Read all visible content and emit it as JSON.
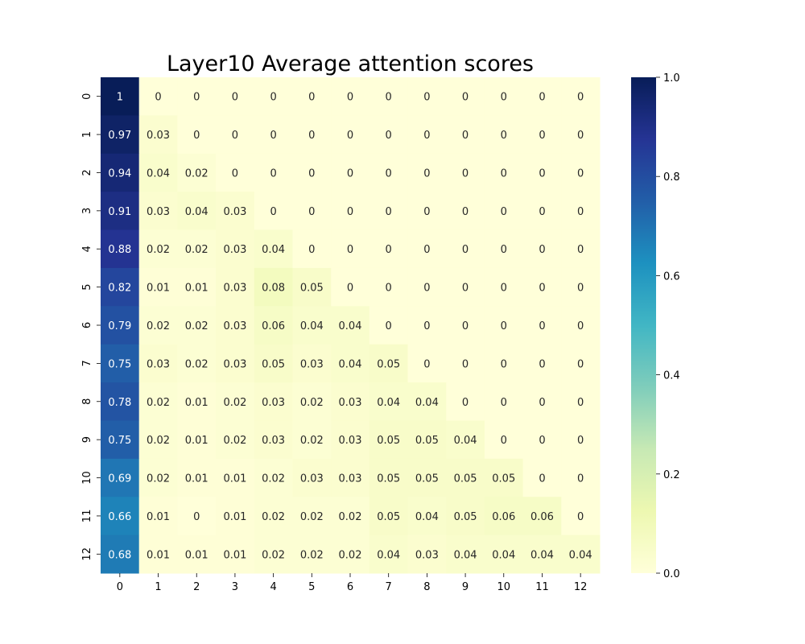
{
  "chart_data": {
    "type": "heatmap",
    "title": "Layer10 Average attention scores",
    "xlabel": "",
    "ylabel": "",
    "x_labels": [
      "0",
      "1",
      "2",
      "3",
      "4",
      "5",
      "6",
      "7",
      "8",
      "9",
      "10",
      "11",
      "12"
    ],
    "y_labels": [
      "0",
      "1",
      "2",
      "3",
      "4",
      "5",
      "6",
      "7",
      "8",
      "9",
      "10",
      "11",
      "12"
    ],
    "values": [
      [
        1,
        0,
        0,
        0,
        0,
        0,
        0,
        0,
        0,
        0,
        0,
        0,
        0
      ],
      [
        0.97,
        0.03,
        0,
        0,
        0,
        0,
        0,
        0,
        0,
        0,
        0,
        0,
        0
      ],
      [
        0.94,
        0.04,
        0.02,
        0,
        0,
        0,
        0,
        0,
        0,
        0,
        0,
        0,
        0
      ],
      [
        0.91,
        0.03,
        0.04,
        0.03,
        0,
        0,
        0,
        0,
        0,
        0,
        0,
        0,
        0
      ],
      [
        0.88,
        0.02,
        0.02,
        0.03,
        0.04,
        0,
        0,
        0,
        0,
        0,
        0,
        0,
        0
      ],
      [
        0.82,
        0.01,
        0.01,
        0.03,
        0.08,
        0.05,
        0,
        0,
        0,
        0,
        0,
        0,
        0
      ],
      [
        0.79,
        0.02,
        0.02,
        0.03,
        0.06,
        0.04,
        0.04,
        0,
        0,
        0,
        0,
        0,
        0
      ],
      [
        0.75,
        0.03,
        0.02,
        0.03,
        0.05,
        0.03,
        0.04,
        0.05,
        0,
        0,
        0,
        0,
        0
      ],
      [
        0.78,
        0.02,
        0.01,
        0.02,
        0.03,
        0.02,
        0.03,
        0.04,
        0.04,
        0,
        0,
        0,
        0
      ],
      [
        0.75,
        0.02,
        0.01,
        0.02,
        0.03,
        0.02,
        0.03,
        0.05,
        0.05,
        0.04,
        0,
        0,
        0
      ],
      [
        0.69,
        0.02,
        0.01,
        0.01,
        0.02,
        0.03,
        0.03,
        0.05,
        0.05,
        0.05,
        0.05,
        0,
        0
      ],
      [
        0.66,
        0.01,
        0,
        0.01,
        0.02,
        0.02,
        0.02,
        0.05,
        0.04,
        0.05,
        0.06,
        0.06,
        0
      ],
      [
        0.68,
        0.01,
        0.01,
        0.01,
        0.02,
        0.02,
        0.02,
        0.04,
        0.03,
        0.04,
        0.04,
        0.04,
        0.04
      ]
    ],
    "colorbar": {
      "min": 0,
      "max": 1,
      "ticks": [
        "0.0",
        "0.2",
        "0.4",
        "0.6",
        "0.8",
        "1.0"
      ],
      "colormap": "YlGnBu"
    },
    "annotated": true
  }
}
